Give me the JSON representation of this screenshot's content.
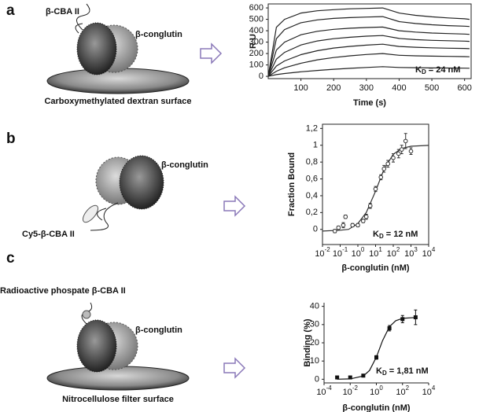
{
  "figure": {
    "panels": [
      {
        "label": "a",
        "texts": [
          "β-CBA II",
          "β-conglutin",
          "Carboxymethylated dextran surface"
        ]
      },
      {
        "label": "b",
        "texts": [
          "β-conglutin",
          "Cy5-β-CBA II"
        ]
      },
      {
        "label": "c",
        "texts": [
          "Radioactive phospate β-CBA II",
          "β-conglutin",
          "Nitrocellulose filter surface"
        ]
      }
    ]
  },
  "chart_data": [
    {
      "type": "line",
      "ylabel": "R U",
      "xlabel": "Time  (s)",
      "color": "#222",
      "box": true,
      "annotation": {
        "text": "K",
        "sub": "D",
        "rest": " = 24 nM"
      },
      "xlim": [
        0,
        620
      ],
      "xticks": [
        100,
        200,
        300,
        400,
        500,
        600
      ],
      "ylim": [
        -20,
        635
      ],
      "yticks": [
        0,
        100,
        200,
        300,
        400,
        500,
        600
      ],
      "x": [
        0,
        25,
        50,
        100,
        150,
        200,
        250,
        300,
        350,
        400,
        450,
        500,
        550,
        600,
        615
      ],
      "series": [
        {
          "values": [
            0,
            430,
            500,
            555,
            575,
            585,
            592,
            596,
            600,
            555,
            535,
            522,
            512,
            505,
            500
          ]
        },
        {
          "values": [
            0,
            330,
            410,
            470,
            495,
            508,
            515,
            520,
            524,
            480,
            463,
            452,
            445,
            440,
            437
          ]
        },
        {
          "values": [
            0,
            230,
            300,
            365,
            395,
            412,
            422,
            428,
            432,
            400,
            388,
            380,
            375,
            371,
            368
          ]
        },
        {
          "values": [
            0,
            150,
            210,
            275,
            310,
            330,
            343,
            352,
            358,
            332,
            322,
            316,
            312,
            309,
            307
          ]
        },
        {
          "values": [
            0,
            90,
            135,
            190,
            225,
            248,
            263,
            274,
            282,
            262,
            255,
            250,
            247,
            245,
            243
          ]
        },
        {
          "values": [
            0,
            45,
            75,
            115,
            145,
            165,
            180,
            192,
            200,
            185,
            180,
            177,
            175,
            173,
            172
          ]
        },
        {
          "values": [
            0,
            15,
            25,
            40,
            52,
            62,
            70,
            78,
            85,
            78,
            76,
            74,
            73,
            72,
            71
          ]
        }
      ]
    },
    {
      "type": "scatter",
      "ylabel": "Fraction Bound",
      "xlabel": "β-conglutin  (nM)",
      "color": "#333",
      "marker": "circle-open",
      "box": true,
      "xscale": "log",
      "annotation": {
        "text": "K",
        "sub": "D",
        "rest": " = 12 nM"
      },
      "xlim": [
        0.01,
        10000
      ],
      "xticks": [
        {
          "value": 0.01,
          "label": "10-2"
        },
        {
          "value": 0.1,
          "label": "10-1"
        },
        {
          "value": 1,
          "label": "100"
        },
        {
          "value": 10,
          "label": "101"
        },
        {
          "value": 100,
          "label": "102"
        },
        {
          "value": 1000,
          "label": "103"
        },
        {
          "value": 10000,
          "label": "104"
        }
      ],
      "ylim": [
        -0.18,
        1.25
      ],
      "yticks": [
        0,
        {
          "value": 0.2,
          "label": "0,2"
        },
        {
          "value": 0.4,
          "label": "0,4"
        },
        {
          "value": 0.6,
          "label": "0,6"
        },
        {
          "value": 0.8,
          "label": "0,8"
        },
        1,
        {
          "value": 1.2,
          "label": "1,2"
        }
      ],
      "x": [
        0.05,
        0.08,
        0.15,
        0.2,
        0.5,
        1,
        2,
        3,
        5,
        10,
        20,
        30,
        50,
        100,
        200,
        300,
        500,
        1000
      ],
      "values": [
        -0.02,
        0.02,
        0.05,
        0.15,
        0.05,
        0.05,
        0.1,
        0.15,
        0.28,
        0.48,
        0.62,
        0.72,
        0.78,
        0.85,
        0.9,
        0.95,
        1.05,
        0.93
      ],
      "errors": [
        0.02,
        0.02,
        0.03,
        0.02,
        0.02,
        0.02,
        0.02,
        0.03,
        0.03,
        0.03,
        0.03,
        0.04,
        0.04,
        0.05,
        0.05,
        0.05,
        0.09,
        0.04
      ],
      "fit_x": [
        0.01,
        0.1,
        0.3,
        1,
        3,
        10,
        30,
        100,
        300,
        1000,
        10000
      ],
      "fit_values": [
        -0.02,
        -0.01,
        0.0,
        0.07,
        0.2,
        0.455,
        0.714,
        0.893,
        0.962,
        0.988,
        0.999
      ]
    },
    {
      "type": "scatter",
      "ylabel": "Binding (%)",
      "xlabel": "β-conglutin  (nM)",
      "color": "#111",
      "marker": "square",
      "box": false,
      "xscale": "log",
      "annotation": {
        "text": "K",
        "sub": "D",
        "rest": " = 1,81 nM"
      },
      "xlim": [
        0.0001,
        10000
      ],
      "xticks": [
        {
          "value": 0.0001,
          "label": "10-4"
        },
        {
          "value": 0.01,
          "label": "10-2"
        },
        {
          "value": 1,
          "label": "100"
        },
        {
          "value": 100,
          "label": "102"
        },
        {
          "value": 10000,
          "label": "104"
        }
      ],
      "ylim": [
        -2,
        42
      ],
      "yticks": [
        0,
        10,
        20,
        30,
        40
      ],
      "x": [
        0.001,
        0.01,
        0.1,
        1,
        10,
        100,
        1000
      ],
      "values": [
        1,
        1,
        2,
        12,
        28,
        33,
        34
      ],
      "errors": [
        0.5,
        0.5,
        0.5,
        1,
        1.5,
        2,
        4
      ],
      "fit_x": [
        0.001,
        0.01,
        0.1,
        0.3,
        1,
        3,
        10,
        30,
        100,
        1000
      ],
      "fit_values": [
        0.02,
        0.19,
        1.78,
        4.83,
        12.1,
        21.2,
        28.8,
        32.1,
        33.4,
        33.9
      ]
    }
  ]
}
